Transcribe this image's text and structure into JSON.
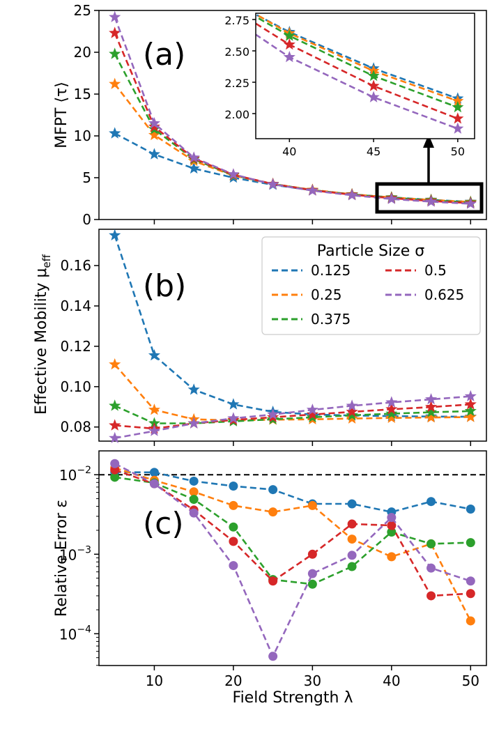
{
  "chart_data": [
    {
      "panel": "a",
      "type": "line",
      "panel_label": "(a)",
      "ylabel": "MFPT ⟨τ⟩",
      "ylim": [
        0,
        25
      ],
      "yticks": [
        0,
        5,
        10,
        15,
        20,
        25
      ],
      "xlim": [
        3,
        52
      ],
      "xticks": [
        10,
        20,
        30,
        40,
        50
      ],
      "marker": "star",
      "x": [
        5,
        10,
        15,
        20,
        25,
        30,
        35,
        40,
        45,
        50
      ],
      "series": [
        {
          "name": "0.125",
          "values": [
            10.3,
            7.8,
            6.1,
            5.0,
            4.15,
            3.5,
            3.0,
            2.65,
            2.36,
            2.12
          ]
        },
        {
          "name": "0.25",
          "values": [
            16.2,
            10.1,
            7.0,
            5.25,
            4.25,
            3.55,
            3.02,
            2.64,
            2.34,
            2.1
          ]
        },
        {
          "name": "0.375",
          "values": [
            19.8,
            10.8,
            7.2,
            5.3,
            4.25,
            3.52,
            3.0,
            2.62,
            2.3,
            2.05
          ]
        },
        {
          "name": "0.5",
          "values": [
            22.3,
            11.1,
            7.3,
            5.35,
            4.25,
            3.5,
            2.97,
            2.55,
            2.22,
            1.96
          ]
        },
        {
          "name": "0.625",
          "values": [
            24.2,
            11.5,
            7.4,
            5.4,
            4.2,
            3.45,
            2.9,
            2.45,
            2.13,
            1.88
          ]
        }
      ],
      "inset": {
        "xlim": [
          38,
          51
        ],
        "ylim": [
          1.8,
          2.8
        ],
        "xticks": [
          40,
          45,
          50
        ],
        "yticks": [
          2.0,
          2.25,
          2.5,
          2.75
        ],
        "ytick_labels": [
          "2.00",
          "2.25",
          "2.50",
          "2.75"
        ]
      }
    },
    {
      "panel": "b",
      "type": "line",
      "panel_label": "(b)",
      "ylabel": "Effective Mobility μ",
      "ylabel_sub": "eff",
      "ylim": [
        0.073,
        0.178
      ],
      "yticks": [
        0.08,
        0.1,
        0.12,
        0.14,
        0.16
      ],
      "ytick_labels": [
        "0.08",
        "0.10",
        "0.12",
        "0.14",
        "0.16"
      ],
      "marker": "star",
      "x": [
        5,
        10,
        15,
        20,
        25,
        30,
        35,
        40,
        45,
        50
      ],
      "series": [
        {
          "name": "0.125",
          "values": [
            0.175,
            0.1155,
            0.0985,
            0.0912,
            0.0875,
            0.0862,
            0.0857,
            0.0854,
            0.0852,
            0.0851
          ]
        },
        {
          "name": "0.25",
          "values": [
            0.111,
            0.0885,
            0.0838,
            0.0833,
            0.0836,
            0.0838,
            0.0842,
            0.0845,
            0.0847,
            0.0849
          ]
        },
        {
          "name": "0.375",
          "values": [
            0.0905,
            0.0818,
            0.0818,
            0.0828,
            0.0838,
            0.0848,
            0.0858,
            0.0866,
            0.0873,
            0.0879
          ]
        },
        {
          "name": "0.5",
          "values": [
            0.0808,
            0.0792,
            0.0818,
            0.0835,
            0.0848,
            0.0862,
            0.0875,
            0.0888,
            0.0899,
            0.0912
          ]
        },
        {
          "name": "0.625",
          "values": [
            0.0745,
            0.078,
            0.0818,
            0.0843,
            0.0862,
            0.0885,
            0.0905,
            0.0922,
            0.0937,
            0.0952
          ]
        }
      ],
      "legend": {
        "title": "Particle Size σ",
        "placement": "upper-right",
        "columns": 2,
        "order": [
          "0.125",
          "0.25",
          "0.375",
          "0.5",
          "0.625"
        ]
      }
    },
    {
      "panel": "c",
      "type": "line",
      "panel_label": "(c)",
      "ylabel": "Relative Error ε",
      "xlabel": "Field Strength λ",
      "yscale": "log",
      "ylim_log10": [
        -4.4,
        -1.7
      ],
      "yticks_log10": [
        -2,
        -3,
        -4
      ],
      "ytick_base": "10",
      "ytick_exponents": [
        "−2",
        "−3",
        "−4"
      ],
      "marker": "circle",
      "reference_line": {
        "y": 0.01,
        "style": "dashed",
        "color": "#000000"
      },
      "x": [
        5,
        10,
        15,
        20,
        25,
        30,
        35,
        40,
        45,
        50
      ],
      "xticks": [
        10,
        20,
        30,
        40,
        50
      ],
      "series": [
        {
          "name": "0.125",
          "values": [
            0.0108,
            0.0107,
            0.0083,
            0.0072,
            0.0065,
            0.0043,
            0.0043,
            0.0034,
            0.0046,
            0.0037
          ]
        },
        {
          "name": "0.25",
          "values": [
            0.0122,
            0.0085,
            0.0061,
            0.0041,
            0.0034,
            0.0041,
            0.00155,
            0.00093,
            0.00135,
            0.000145
          ]
        },
        {
          "name": "0.375",
          "values": [
            0.0093,
            0.0079,
            0.0049,
            0.0022,
            0.00048,
            0.00042,
            0.0007,
            0.0019,
            0.00135,
            0.0014
          ]
        },
        {
          "name": "0.5",
          "values": [
            0.0115,
            0.0077,
            0.0036,
            0.00145,
            0.00046,
            0.001,
            0.0024,
            0.0023,
            0.0003,
            0.00032
          ]
        },
        {
          "name": "0.625",
          "values": [
            0.0138,
            0.0077,
            0.0033,
            0.00072,
            5.2e-05,
            0.00057,
            0.00097,
            0.0029,
            0.00067,
            0.00046
          ]
        }
      ]
    }
  ],
  "colors": {
    "0.125": "#1f77b4",
    "0.25": "#ff7f0e",
    "0.375": "#2ca02c",
    "0.5": "#d62728",
    "0.625": "#9467bd",
    "axis": "#000000",
    "zoom_box": "#000000"
  }
}
